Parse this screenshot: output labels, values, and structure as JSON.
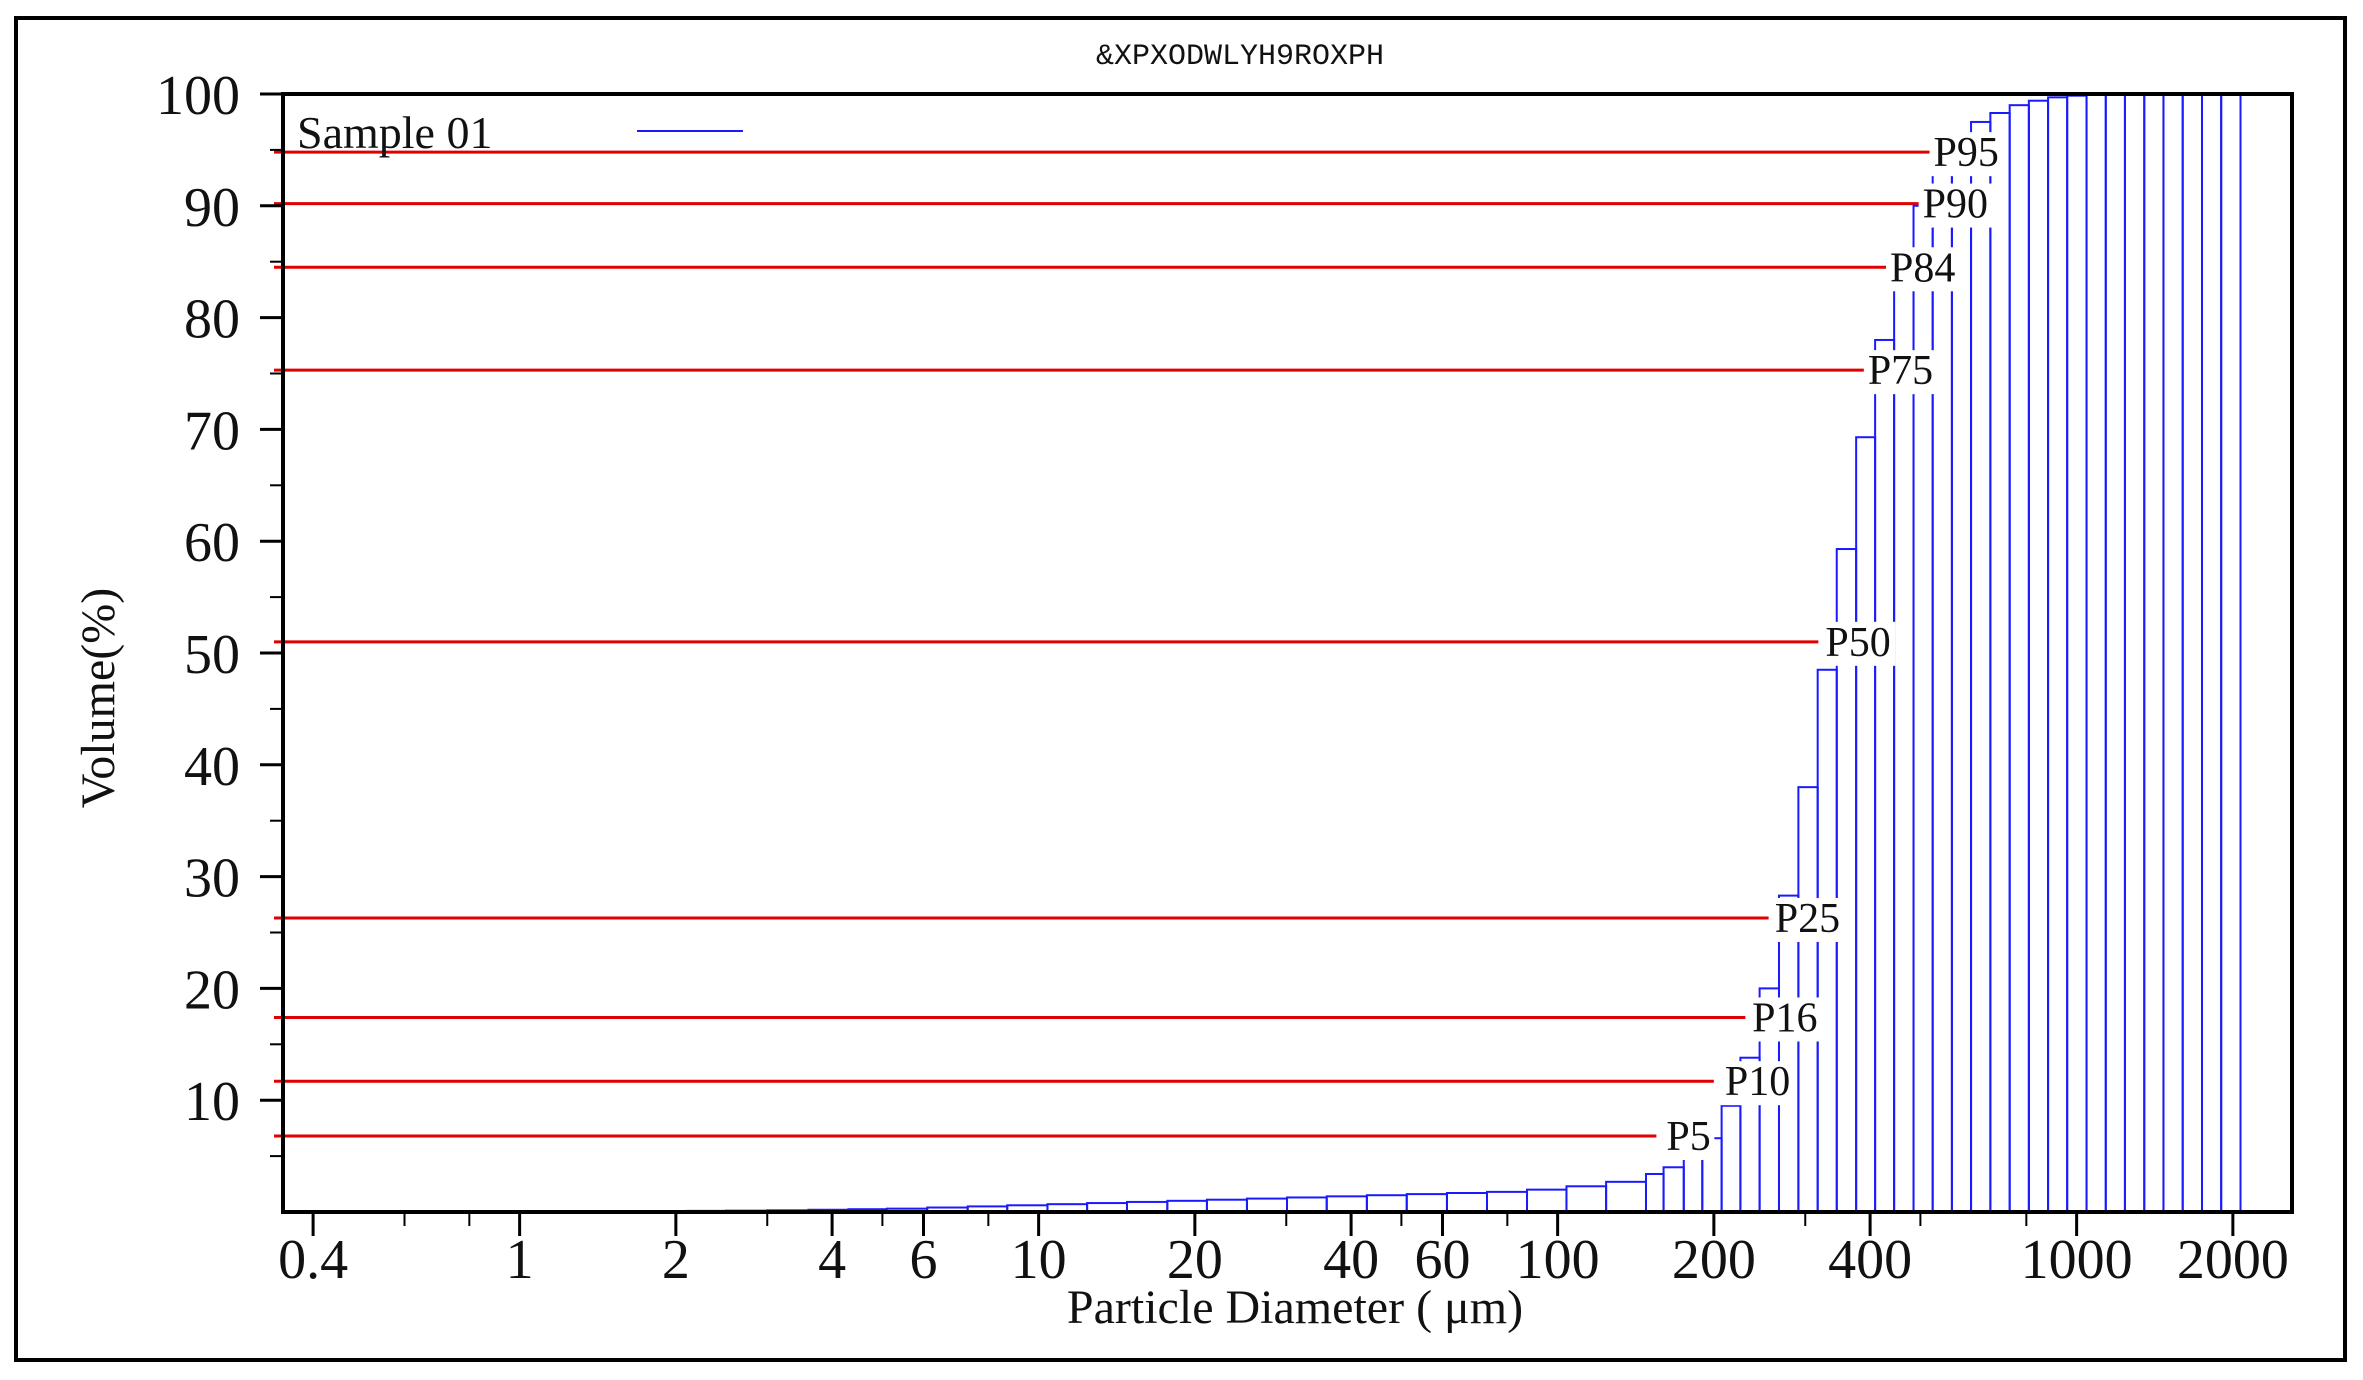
{
  "chart_data": {
    "type": "bar",
    "title": "&XPXODWLYH9ROXPH",
    "xlabel": "Particle Diameter (   μm)",
    "ylabel": "Volume(%)",
    "x_scale": "log",
    "xlim": [
      0.35,
      2600
    ],
    "ylim": [
      0,
      100
    ],
    "grid": false,
    "legend_position": "top-left",
    "x_ticks": [
      {
        "value": 0.4,
        "label": "0.4"
      },
      {
        "value": 1,
        "label": "1"
      },
      {
        "value": 2,
        "label": "2"
      },
      {
        "value": 4,
        "label": "4"
      },
      {
        "value": 6,
        "label": "6"
      },
      {
        "value": 10,
        "label": "10"
      },
      {
        "value": 20,
        "label": "20"
      },
      {
        "value": 40,
        "label": "40"
      },
      {
        "value": 60,
        "label": "60"
      },
      {
        "value": 100,
        "label": "100"
      },
      {
        "value": 200,
        "label": "200"
      },
      {
        "value": 400,
        "label": "400"
      },
      {
        "value": 1000,
        "label": "1000"
      },
      {
        "value": 2000,
        "label": "2000"
      }
    ],
    "y_ticks": [
      {
        "value": 10,
        "label": "10"
      },
      {
        "value": 20,
        "label": "20"
      },
      {
        "value": 30,
        "label": "30"
      },
      {
        "value": 40,
        "label": "40"
      },
      {
        "value": 50,
        "label": "50"
      },
      {
        "value": 60,
        "label": "60"
      },
      {
        "value": 70,
        "label": "70"
      },
      {
        "value": 80,
        "label": "80"
      },
      {
        "value": 90,
        "label": "90"
      },
      {
        "value": 100,
        "label": "100"
      }
    ],
    "series": [
      {
        "name": "Sample 01",
        "color": "#1a1aff",
        "step": "post",
        "points": [
          [
            1,
            0.02
          ],
          [
            1.2,
            0.04
          ],
          [
            1.45,
            0.06
          ],
          [
            1.75,
            0.08
          ],
          [
            2.1,
            0.1
          ],
          [
            2.5,
            0.12
          ],
          [
            3,
            0.15
          ],
          [
            3.6,
            0.2
          ],
          [
            4.3,
            0.25
          ],
          [
            5.1,
            0.3
          ],
          [
            6.1,
            0.4
          ],
          [
            7.3,
            0.5
          ],
          [
            8.7,
            0.6
          ],
          [
            10.4,
            0.7
          ],
          [
            12.4,
            0.8
          ],
          [
            14.8,
            0.9
          ],
          [
            17.7,
            1.0
          ],
          [
            21.1,
            1.1
          ],
          [
            25.2,
            1.2
          ],
          [
            30.1,
            1.3
          ],
          [
            35.9,
            1.4
          ],
          [
            42.9,
            1.5
          ],
          [
            51.2,
            1.6
          ],
          [
            61.2,
            1.7
          ],
          [
            73.1,
            1.8
          ],
          [
            87.3,
            2.0
          ],
          [
            104,
            2.3
          ],
          [
            124,
            2.7
          ],
          [
            148,
            3.4
          ],
          [
            160,
            4.0
          ],
          [
            175,
            4.8
          ],
          [
            190,
            6.6
          ],
          [
            207,
            9.5
          ],
          [
            225,
            13.8
          ],
          [
            245,
            20.0
          ],
          [
            267,
            28.3
          ],
          [
            291,
            38.0
          ],
          [
            317,
            48.5
          ],
          [
            345,
            59.3
          ],
          [
            376,
            69.3
          ],
          [
            409,
            78.0
          ],
          [
            445,
            85.0
          ],
          [
            485,
            90.0
          ],
          [
            528,
            93.5
          ],
          [
            575,
            95.8
          ],
          [
            626,
            97.5
          ],
          [
            682,
            98.3
          ],
          [
            743,
            99.0
          ],
          [
            809,
            99.4
          ],
          [
            881,
            99.7
          ],
          [
            959,
            99.85
          ],
          [
            1045,
            99.95
          ],
          [
            1138,
            100
          ],
          [
            1239,
            100
          ],
          [
            1350,
            100
          ],
          [
            1470,
            100
          ],
          [
            1601,
            100
          ],
          [
            1744,
            100
          ],
          [
            1899,
            100
          ],
          [
            2069,
            100
          ]
        ],
        "end_x": 2069
      }
    ],
    "annotations": [
      {
        "label": "P5",
        "y": 6.8,
        "x_end": 155,
        "label_x": 162
      },
      {
        "label": "P10",
        "y": 11.7,
        "x_end": 200,
        "label_x": 210
      },
      {
        "label": "P16",
        "y": 17.4,
        "x_end": 230,
        "label_x": 237
      },
      {
        "label": "P25",
        "y": 26.3,
        "x_end": 255,
        "label_x": 262
      },
      {
        "label": "P50",
        "y": 51.0,
        "x_end": 318,
        "label_x": 328
      },
      {
        "label": "P75",
        "y": 75.3,
        "x_end": 391,
        "label_x": 396
      },
      {
        "label": "P84",
        "y": 84.5,
        "x_end": 430,
        "label_x": 437
      },
      {
        "label": "P90",
        "y": 90.2,
        "x_end": 503,
        "label_x": 505
      },
      {
        "label": "P95",
        "y": 94.8,
        "x_end": 548,
        "label_x": 530
      }
    ],
    "annotation_color": "#e00000"
  }
}
